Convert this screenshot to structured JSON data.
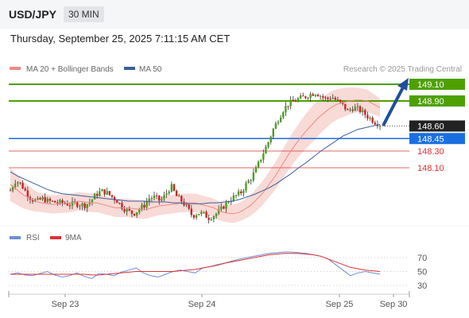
{
  "header": {
    "symbol": "USD/JPY",
    "timeframe": "30 MIN"
  },
  "datetime": "Thursday, September 25, 2025 7:11:15 AM CET",
  "legend": {
    "bollinger": "MA 20 + Bollinger Bands",
    "ma50": "MA 50",
    "credit": "Research © 2025 Trading Central"
  },
  "rsi_legend": {
    "rsi": "RSI",
    "ma9": "9MA"
  },
  "colors": {
    "green": "#4ea000",
    "blue": "#1a6fe0",
    "red": "#e03030",
    "band": "#f5c9c6",
    "ma20": "#f08a84",
    "ma50": "#3b5f9c",
    "rsi": "#6a8ee0",
    "arrow": "#1f4e9b"
  },
  "chart_data": [
    {
      "type": "candlestick",
      "levels": [
        {
          "label": "149.10",
          "value": 149.1,
          "kind": "target"
        },
        {
          "label": "148.90",
          "value": 148.9,
          "kind": "target"
        },
        {
          "label": "148.60",
          "value": 148.6,
          "kind": "last"
        },
        {
          "label": "148.45",
          "value": 148.45,
          "kind": "pivot"
        },
        {
          "label": "148.30",
          "value": 148.3,
          "kind": "support"
        },
        {
          "label": "148.10",
          "value": 148.1,
          "kind": "support"
        }
      ],
      "x_ticks": [
        "Sep 23",
        "Sep 24",
        "Sep 25",
        "Sep 30"
      ],
      "close_path": [
        147.83,
        147.95,
        147.9,
        147.8,
        147.72,
        147.7,
        147.73,
        147.7,
        147.69,
        147.68,
        147.68,
        147.66,
        147.67,
        147.66,
        147.65,
        147.7,
        147.78,
        147.82,
        147.8,
        147.75,
        147.7,
        147.62,
        147.58,
        147.55,
        147.6,
        147.65,
        147.74,
        147.75,
        147.7,
        147.78,
        147.88,
        147.76,
        147.7,
        147.62,
        147.52,
        147.56,
        147.55,
        147.5,
        147.53,
        147.58,
        147.65,
        147.72,
        147.76,
        147.8,
        147.9,
        147.98,
        148.1,
        148.25,
        148.38,
        148.55,
        148.68,
        148.8,
        148.87,
        148.9,
        148.93,
        148.95,
        148.98,
        149.0,
        148.96,
        148.92,
        148.95,
        148.9,
        148.85,
        148.78,
        148.82,
        148.8,
        148.75,
        148.7,
        148.65,
        148.62
      ],
      "ma20": [
        147.9,
        147.84,
        147.78,
        147.74,
        147.7,
        147.68,
        147.67,
        147.66,
        147.67,
        147.67,
        147.68,
        147.7,
        147.69,
        147.68,
        147.68,
        147.66,
        147.64,
        147.62,
        147.62,
        147.62,
        147.61,
        147.6,
        147.6,
        147.62,
        147.64,
        147.65,
        147.66,
        147.67,
        147.68,
        147.68,
        147.68,
        147.66,
        147.64,
        147.62,
        147.58,
        147.56,
        147.55,
        147.56,
        147.6,
        147.65,
        147.72,
        147.8,
        147.9,
        148.0,
        148.12,
        148.24,
        148.35,
        148.45,
        148.54,
        148.62,
        148.7,
        148.76,
        148.82,
        148.86,
        148.88,
        148.9,
        148.91,
        148.91,
        148.9,
        148.86,
        148.82
      ],
      "ma50": [
        148.05,
        148.0,
        147.96,
        147.92,
        147.88,
        147.84,
        147.81,
        147.79,
        147.78,
        147.77,
        147.76,
        147.75,
        147.74,
        147.73,
        147.72,
        147.71,
        147.7,
        147.7,
        147.7,
        147.69,
        147.69,
        147.69,
        147.68,
        147.68,
        147.67,
        147.67,
        147.67,
        147.68,
        147.68,
        147.69,
        147.7,
        147.72,
        147.75,
        147.78,
        147.82,
        147.86,
        147.91,
        147.97,
        148.03,
        148.1,
        148.16,
        148.23,
        148.3,
        148.36,
        148.42,
        148.48,
        148.52,
        148.56,
        148.58,
        148.6,
        148.62
      ]
    },
    {
      "type": "line",
      "name": "RSI",
      "y_ticks": [
        "70",
        "50",
        "30"
      ],
      "rsi": [
        46,
        48,
        45,
        44,
        47,
        50,
        45,
        42,
        44,
        48,
        43,
        40,
        47,
        46,
        44,
        49,
        52,
        55,
        48,
        44,
        42,
        46,
        50,
        52,
        50,
        48,
        55,
        57,
        60,
        62,
        65,
        68,
        70,
        72,
        74,
        76,
        77,
        78,
        78,
        77,
        76,
        74,
        72,
        68,
        60,
        52,
        44,
        48,
        50,
        48,
        46
      ],
      "ma9": [
        46,
        46,
        46,
        46,
        46,
        46,
        46,
        46,
        46,
        46,
        46,
        45,
        45,
        46,
        47,
        48,
        49,
        50,
        50,
        50,
        50,
        50,
        50,
        51,
        52,
        53,
        55,
        57,
        59,
        62,
        64,
        66,
        68,
        70,
        72,
        74,
        75,
        76,
        76,
        76,
        75,
        74,
        72,
        68,
        64,
        60,
        56,
        54,
        52,
        51,
        50
      ]
    }
  ]
}
